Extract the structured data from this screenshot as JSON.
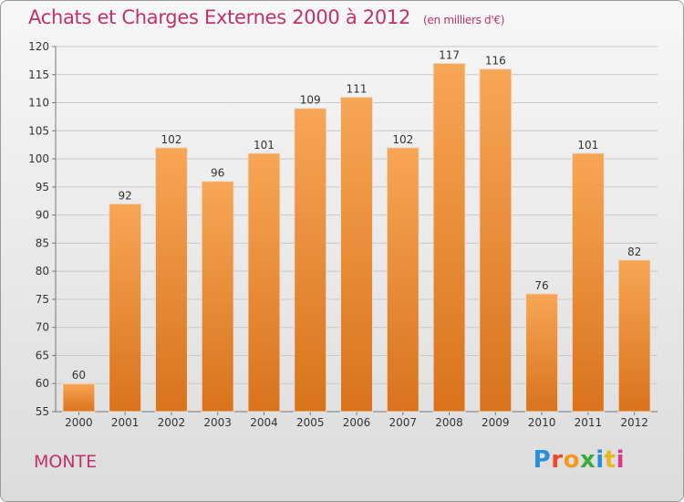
{
  "header": {
    "title": "Achats et Charges Externes 2000 à 2012",
    "unit": "(en milliers d'€)"
  },
  "footer": {
    "commune": "MONTE",
    "logo_letters": [
      "P",
      "r",
      "o",
      "x",
      "i",
      "t",
      "i"
    ],
    "logo_colors": [
      "#2a8fd6",
      "#e84a2a",
      "#f39a1e",
      "#3daa3a",
      "#2a8fd6",
      "#e8b81e",
      "#d63a8a"
    ]
  },
  "colors": {
    "accent": "#c0306a",
    "bar_top": "#f7a655",
    "bar_bottom": "#d9731c"
  },
  "chart_data": {
    "type": "bar",
    "categories": [
      "2000",
      "2001",
      "2002",
      "2003",
      "2004",
      "2005",
      "2006",
      "2007",
      "2008",
      "2009",
      "2010",
      "2011",
      "2012"
    ],
    "values": [
      60,
      92,
      102,
      96,
      101,
      109,
      111,
      102,
      117,
      116,
      76,
      101,
      82
    ],
    "title": "Achats et Charges Externes 2000 à 2012",
    "xlabel": "",
    "ylabel": "",
    "ylim": [
      55,
      120
    ],
    "yticks": [
      55,
      60,
      65,
      70,
      75,
      80,
      85,
      90,
      95,
      100,
      105,
      110,
      115,
      120
    ],
    "grid": true,
    "data_labels": true
  }
}
